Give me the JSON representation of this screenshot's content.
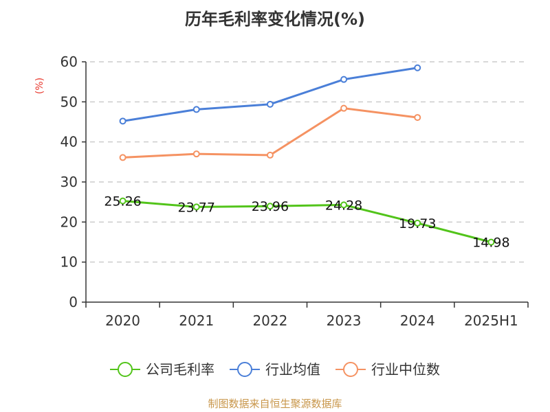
{
  "chart_data": {
    "type": "line",
    "title": "历年毛利率变化情况(%)",
    "ylabel": "(%)",
    "xlabel": "",
    "categories": [
      "2020",
      "2021",
      "2022",
      "2023",
      "2024",
      "2025H1"
    ],
    "ylim": [
      0,
      60
    ],
    "yticks": [
      0,
      10,
      20,
      30,
      40,
      50,
      60
    ],
    "grid": true,
    "legend_position": "bottom",
    "series": [
      {
        "name": "公司毛利率",
        "color": "#52c41a",
        "values": [
          25.26,
          23.77,
          23.96,
          24.28,
          19.73,
          14.98
        ],
        "labels": [
          "25.26",
          "23.77",
          "23.96",
          "24.28",
          "19.73",
          "14.98"
        ]
      },
      {
        "name": "行业均值",
        "color": "#4a7fd8",
        "values": [
          45.2,
          48.1,
          49.4,
          55.6,
          58.5,
          null
        ]
      },
      {
        "name": "行业中位数",
        "color": "#f59262",
        "values": [
          36.1,
          37.0,
          36.7,
          48.4,
          46.1,
          null
        ]
      }
    ]
  },
  "source": "制图数据来自恒生聚源数据库"
}
